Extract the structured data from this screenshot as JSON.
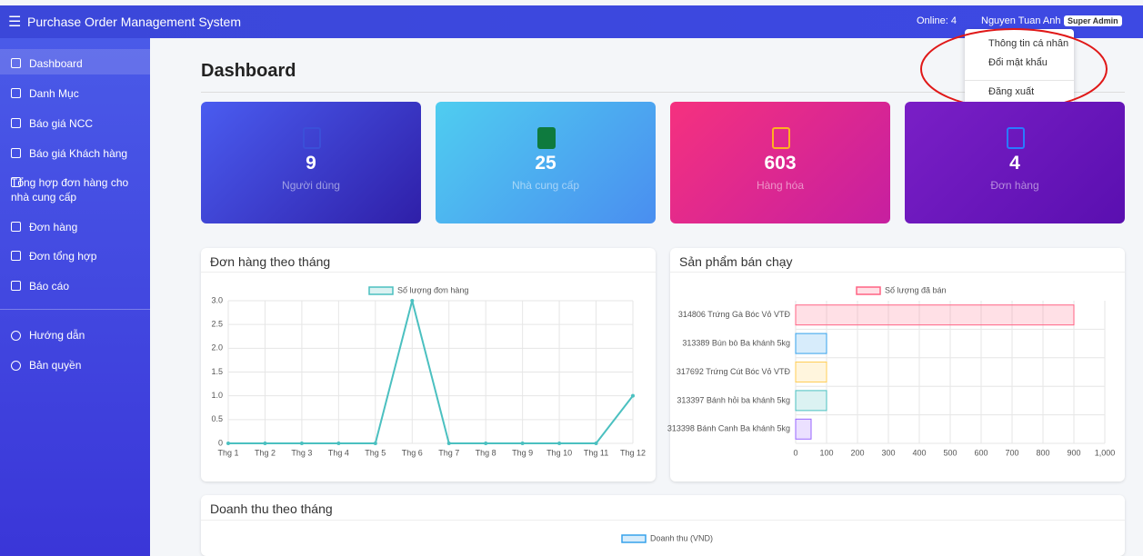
{
  "header": {
    "title": "Purchase Order Management System",
    "online": "Online: 4",
    "user": "Nguyen Tuan Anh",
    "role": "Super Admin"
  },
  "user_menu": [
    "Thông tin cá nhân",
    "Đổi mật khẩu",
    "Đăng xuất"
  ],
  "sidebar": {
    "items": [
      "Dashboard",
      "Danh Mục",
      "Báo giá NCC",
      "Báo giá Khách hàng",
      "Tổng hợp đơn hàng cho nhà cung cấp",
      "Đơn hàng",
      "Đơn tổng hợp",
      "Báo cáo"
    ],
    "extra": [
      "Hướng dẫn",
      "Bản quyền"
    ]
  },
  "page_title": "Dashboard",
  "stats": [
    {
      "value": "9",
      "label": "Người dùng"
    },
    {
      "value": "25",
      "label": "Nhà cung cấp"
    },
    {
      "value": "603",
      "label": "Hàng hóa"
    },
    {
      "value": "4",
      "label": "Đơn hàng"
    }
  ],
  "chart_data": [
    {
      "type": "line",
      "title": "Đơn hàng theo tháng",
      "categories": [
        "Thg 1",
        "Thg 2",
        "Thg 3",
        "Thg 4",
        "Thg 5",
        "Thg 6",
        "Thg 7",
        "Thg 8",
        "Thg 9",
        "Thg 10",
        "Thg 11",
        "Thg 12"
      ],
      "series": [
        {
          "name": "Số lượng đơn hàng",
          "color": "#4bc0c0",
          "values": [
            0,
            0,
            0,
            0,
            0,
            3,
            0,
            0,
            0,
            0,
            0,
            1
          ]
        }
      ],
      "ylim": [
        0,
        3
      ],
      "yticks": [
        0,
        0.5,
        {
          "value": 1,
          "label": "1.0"
        },
        1.5,
        {
          "value": 2,
          "label": "2.0"
        },
        2.5,
        {
          "value": 3,
          "label": "3.0"
        }
      ],
      "grid": true
    },
    {
      "type": "hbar",
      "title": "Sản phẩm bán chạy",
      "categories": [
        "314806 Trứng Gà Bóc Vỏ VTĐ",
        "313389 Bún bò Ba khánh 5kg",
        "317692 Trứng Cút Bóc Vỏ VTĐ",
        "313397 Bánh hỏi ba khánh 5kg",
        "313398 Bánh Canh Ba khánh 5kg"
      ],
      "series": [
        {
          "name": "Số lượng đã bán",
          "color": "#ff6384",
          "colors": [
            "#ff6384",
            "#36a2eb",
            "#ffce56",
            "#4bc0c0",
            "#9966ff"
          ],
          "values": [
            900,
            100,
            100,
            100,
            50
          ]
        }
      ],
      "xlim": [
        0,
        1000
      ],
      "xticks": [
        0,
        100,
        200,
        300,
        400,
        500,
        600,
        700,
        800,
        900,
        {
          "value": 1000,
          "label": "1,000"
        }
      ],
      "grid": true
    },
    {
      "type": "bar",
      "title": "Doanh thu theo tháng",
      "series": [
        {
          "name": "Doanh thu (VND)",
          "color": "#36a2eb"
        }
      ]
    }
  ]
}
